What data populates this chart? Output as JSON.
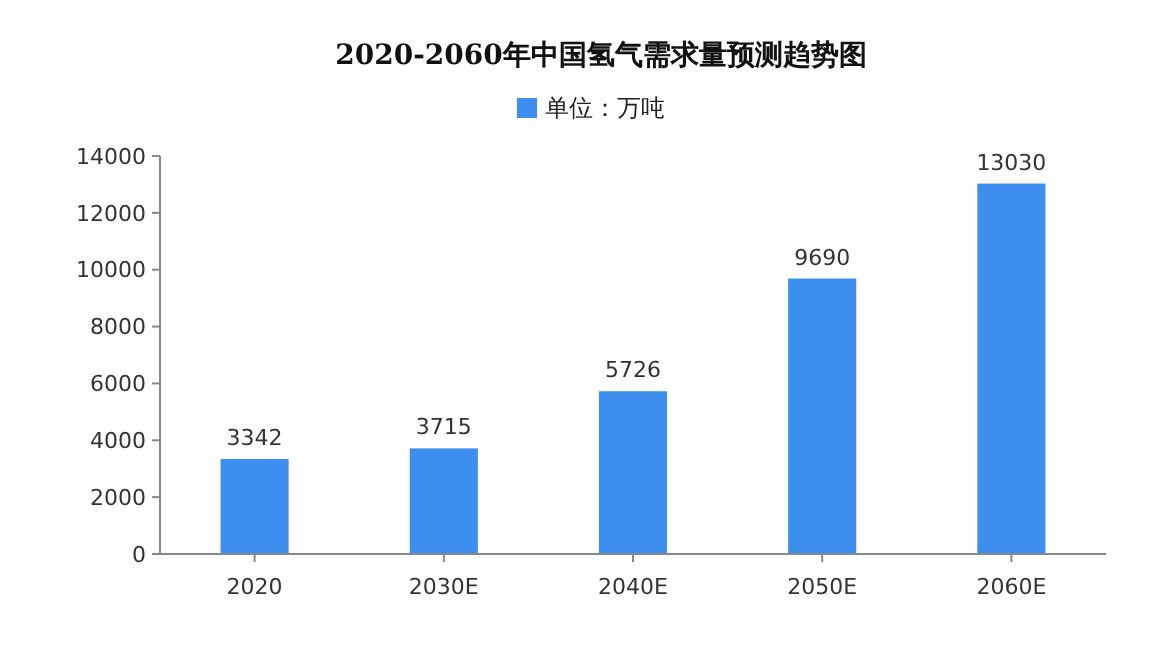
{
  "chart_data": {
    "type": "bar",
    "title": "2020-2060年中国氢气需求量预测趋势图",
    "categories": [
      "2020",
      "2030E",
      "2040E",
      "2050E",
      "2060E"
    ],
    "series": [
      {
        "name": "单位：万吨",
        "color": "#3d8fef",
        "values": [
          3342,
          3715,
          5726,
          9690,
          13030
        ]
      }
    ],
    "ylim": [
      0,
      14000
    ],
    "yticks": [
      0,
      2000,
      4000,
      6000,
      8000,
      10000,
      12000,
      14000
    ],
    "data_labels": true,
    "legend": "top",
    "grid": false
  }
}
